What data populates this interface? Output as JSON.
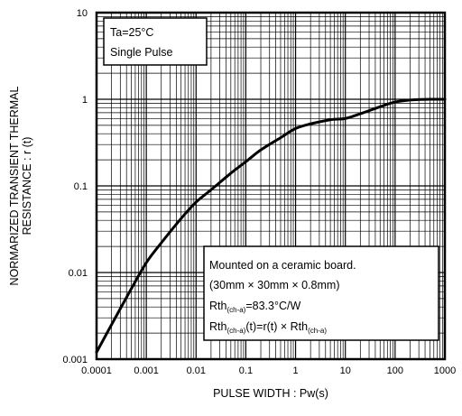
{
  "chart_data": {
    "type": "line",
    "xscale": "log",
    "yscale": "log",
    "xlim": [
      0.0001,
      1000
    ],
    "ylim": [
      0.001,
      10
    ],
    "grid": true,
    "xlabel": "PULSE WIDTH : Pw(s)",
    "ylabel_lines": [
      "NORMARIZED TRANSIENT THERMAL",
      "RESISTANCE : r (t)"
    ],
    "x_tick_labels": [
      "0.0001",
      "0.001",
      "0.01",
      "0.1",
      "1",
      "10",
      "100",
      "1000"
    ],
    "y_tick_labels": [
      "0.001",
      "0.01",
      "0.1",
      "1",
      "10"
    ],
    "conditions": [
      "Ta=25°C",
      "Single Pulse"
    ],
    "board_note": {
      "line1": "Mounted on a ceramic board.",
      "line2": "(30mm × 30mm × 0.8mm)",
      "rth_label": "Rth",
      "rth_sub": "(ch-a)",
      "rth_value": "=83.3°C/W",
      "formula_left": "Rth",
      "formula_left_sub": "(ch-a)",
      "formula_mid": "(t)=r(t) × Rth",
      "formula_right_sub": "(ch-a)"
    },
    "series": [
      {
        "x": [
          0.0001,
          0.0002,
          0.0005,
          0.001,
          0.002,
          0.005,
          0.01,
          0.02,
          0.05,
          0.1,
          0.2,
          0.5,
          1,
          2,
          5,
          10,
          20,
          50,
          100,
          200,
          500,
          1000
        ],
        "y": [
          0.0012,
          0.0025,
          0.0065,
          0.013,
          0.022,
          0.042,
          0.065,
          0.09,
          0.14,
          0.19,
          0.26,
          0.36,
          0.46,
          0.52,
          0.58,
          0.6,
          0.68,
          0.82,
          0.93,
          0.98,
          1.0,
          1.0
        ]
      }
    ]
  },
  "colors": {
    "curve": "#000000",
    "grid": "#000000",
    "background": "#ffffff"
  }
}
